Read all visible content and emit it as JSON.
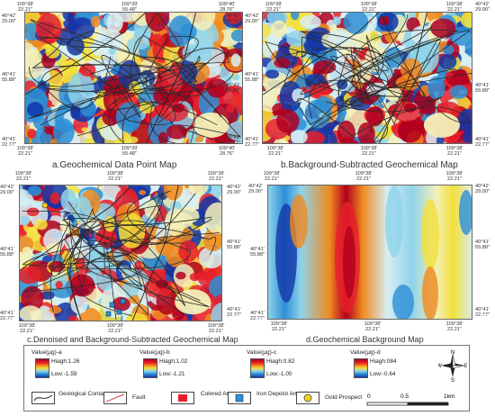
{
  "panels": {
    "a": {
      "caption": "a.Geochemical Data Point Map",
      "top_ticks": [
        "109°38'\n22.21\"",
        "109°39'\n55.48\"",
        "109°40'\n28.76\""
      ],
      "bottom_ticks": [
        "109°38'\n22.21\"",
        "109°39'\n55.48\"",
        "109°40'\n28.76\""
      ],
      "left_ticks": [
        "40°42'\n29.00\"",
        "40°41'\n55.88\"",
        "40°41'\n22.77\""
      ],
      "right_ticks": [
        "40°42'\n29.00\"",
        "40°41'\n55.88\"",
        "40°41'\n22.77\""
      ]
    },
    "b": {
      "caption": "b.Background-Subtracted Geochemical Map",
      "top_ticks": [
        "109°38'\n22.21\"",
        "109°38'\n22.21\"",
        "109°38'\n22.21\""
      ],
      "bottom_ticks": [
        "109°38'\n22.21\"",
        "109°38'\n22.21\"",
        "109°38'\n22.21\""
      ],
      "left_ticks": [
        "40°42'\n29.00\"",
        "40°41'\n55.88\"",
        "40°41'\n22.77\""
      ],
      "right_ticks": [
        "40°42'\n29.00\"",
        "40°41'\n55.88\"",
        "40°41'\n22.77\""
      ]
    },
    "c": {
      "caption": "c.Denoised and Background-Subtracted Geochemical Map",
      "top_ticks": [
        "109°38'\n22.21\"",
        "109°38'\n22.21\"",
        "109°38'\n22.21\""
      ],
      "bottom_ticks": [
        "109°38'\n22.21\"",
        "109°38'\n22.21\"",
        "109°38'\n22.21\""
      ],
      "left_ticks": [
        "40°42'\n29.00\"",
        "40°41'\n55.88\"",
        "40°41'\n22.77\""
      ],
      "right_ticks": [
        "40°42'\n29.00\"",
        "40°41'\n55.88\"",
        "40°41'\n22.77\""
      ]
    },
    "d": {
      "caption": "d.Geochemical Background Map",
      "top_ticks": [
        "109°38'\n22.21\"",
        "109°38'\n22.21\"",
        "109°38'\n22.21\""
      ],
      "bottom_ticks": [
        "109°38'\n22.21\"",
        "109°38'\n22.21\"",
        "109°38'\n22.21\""
      ],
      "left_ticks": [
        "40°42'\n29.00\"",
        "40°41'\n55.88\"",
        "40°41'\n22.77\""
      ],
      "right_ticks": [
        "40°42'\n29.00\"",
        "40°41'\n55.88\"",
        "40°41'\n22.77\""
      ]
    }
  },
  "legend": {
    "ramps": [
      {
        "title": "Value(μg)-a",
        "high": "Hiagh:1.26",
        "low": "Low:-1.59"
      },
      {
        "title": "Value(μg)-b",
        "high": "Hiagh:1.02",
        "low": "Low:-1.21"
      },
      {
        "title": "Value(μg)-c",
        "high": "Hiagh:0.82",
        "low": "Low:-1.00"
      },
      {
        "title": "Value(μg)-d",
        "high": "Hiagh:084",
        "low": "Low:-0.64"
      }
    ],
    "symbols": {
      "contact": "Geological\nContact",
      "fault": "Fault",
      "colored": "Colored\nArea",
      "iron": "Iron Depoist\nAnd Mines",
      "gold": "Gold Prospect"
    },
    "compass": {
      "n": "N",
      "s": "S",
      "e": "E",
      "w": "W"
    },
    "scale": {
      "zero": "0",
      "half": "0.5",
      "one": "1km"
    },
    "colors": {
      "high": "#b0001e",
      "mid": "#f3e03a",
      "low": "#1336a8",
      "colored_area": "#e8202a",
      "iron": "#2d8fd6",
      "gold": "#f2d21a",
      "fault": "#c83c3c"
    }
  }
}
